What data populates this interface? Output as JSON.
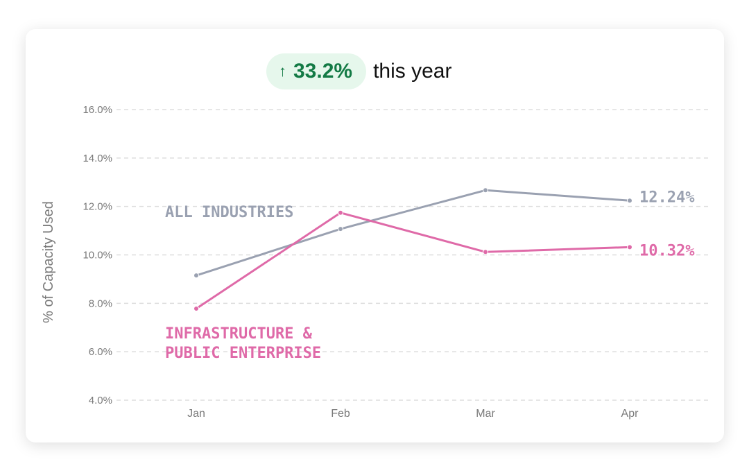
{
  "header": {
    "arrow_icon": "up-arrow-icon",
    "change": "33.2%",
    "suffix": "this year"
  },
  "colors": {
    "all_industries": "#9aa1b1",
    "infrastructure": "#df6aa8",
    "badge_text": "#137a45",
    "badge_bg": "#e6f7ec",
    "grid": "#dddddd",
    "axis_text": "#7a7a7a"
  },
  "chart_data": {
    "type": "line",
    "title": "",
    "xlabel": "",
    "ylabel": "% of Capacity Used",
    "categories": [
      "Jan",
      "Feb",
      "Mar",
      "Apr"
    ],
    "ylim": [
      4.0,
      16.0
    ],
    "yticks": [
      "4.0%",
      "6.0%",
      "8.0%",
      "10.0%",
      "12.0%",
      "14.0%",
      "16.0%"
    ],
    "grid": true,
    "series": [
      {
        "name": "ALL INDUSTRIES",
        "label_lines": [
          "ALL INDUSTRIES"
        ],
        "values": [
          9.15,
          11.07,
          12.67,
          12.24
        ],
        "end_label": "12.24%"
      },
      {
        "name": "INFRASTRUCTURE & PUBLIC ENTERPRISE",
        "label_lines": [
          "INFRASTRUCTURE &",
          "PUBLIC ENTERPRISE"
        ],
        "values": [
          7.78,
          11.74,
          10.12,
          10.32
        ],
        "end_label": "10.32%"
      }
    ]
  }
}
